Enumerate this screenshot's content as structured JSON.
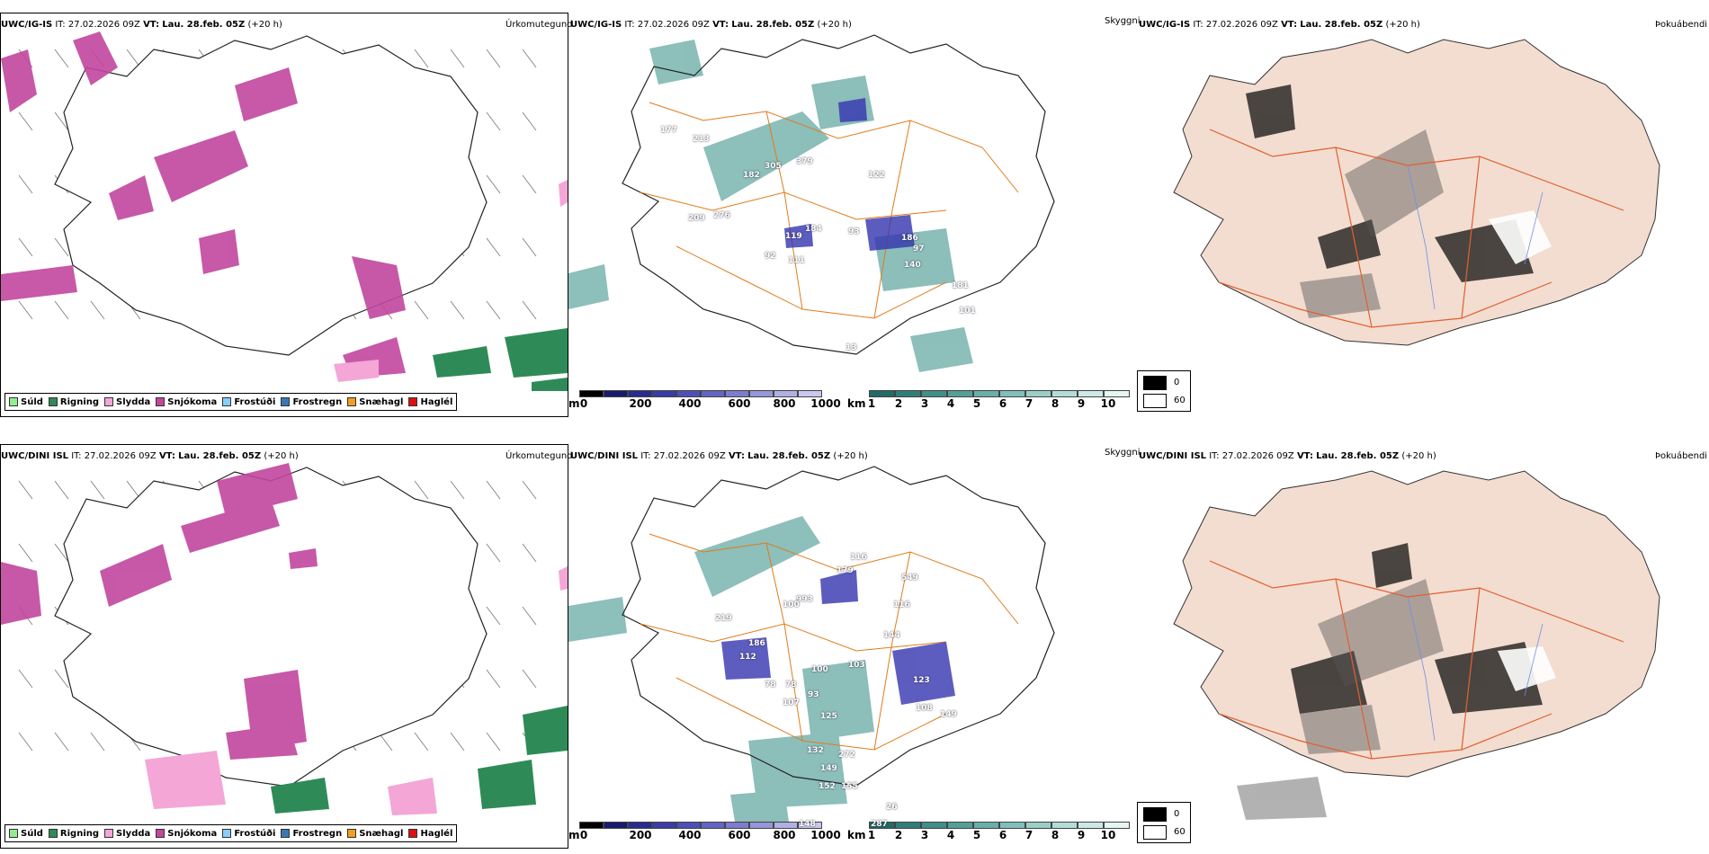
{
  "rows": [
    {
      "model": "UWC/IG-IS",
      "it_label": "IT:",
      "it_value": "27.02.2026 09Z",
      "vt_label": "VT:",
      "vt_value": "Lau. 28.feb. 05Z",
      "lead": "(+20 h)",
      "panel1_title": "Úrkomutegund",
      "panel2_title": "Skyggni",
      "panel3_title": "Þokuábendi"
    },
    {
      "model": "UWC/DINI ISL",
      "it_label": "IT:",
      "it_value": "27.02.2026 09Z",
      "vt_label": "VT:",
      "vt_value": "Lau. 28.feb. 05Z",
      "lead": "(+20 h)",
      "panel1_title": "Úrkomutegund",
      "panel2_title": "Skyggni",
      "panel3_title": "Þokuábendi"
    }
  ],
  "precip_legend": [
    {
      "label": "Súld",
      "color": "#90ee90"
    },
    {
      "label": "Rigning",
      "color": "#2e8b57"
    },
    {
      "label": "Slydda",
      "color": "#f4a6d7"
    },
    {
      "label": "Snjókoma",
      "color": "#c2469e"
    },
    {
      "label": "Frostúði",
      "color": "#87cefa"
    },
    {
      "label": "Frostregn",
      "color": "#3a78b5"
    },
    {
      "label": "Snæhagl",
      "color": "#f0a020"
    },
    {
      "label": "Haglél",
      "color": "#dd1111"
    }
  ],
  "height_scale": {
    "unit": "m",
    "ticks": [
      "0",
      "200",
      "400",
      "600",
      "800",
      "1000"
    ],
    "colors": [
      "#000000",
      "#1a1a6e",
      "#2b2b8f",
      "#3b3ba8",
      "#4e4eb8",
      "#6464c4",
      "#7c7cd0",
      "#9696da",
      "#b0b0e4",
      "#c8c8ee",
      "#e0e0f6"
    ]
  },
  "vis_scale": {
    "unit": "km",
    "ticks": [
      "1",
      "2",
      "3",
      "4",
      "5",
      "6",
      "7",
      "8",
      "9",
      "10"
    ],
    "colors": [
      "#1f6b66",
      "#2f7f79",
      "#408f89",
      "#53a099",
      "#68b0a9",
      "#80c0b9",
      "#99cfc8",
      "#b3ddd7",
      "#cde9e5",
      "#e6f4f2"
    ]
  },
  "fog_scale": {
    "items": [
      {
        "label": "0",
        "color": "#000000"
      },
      {
        "label": "60",
        "color": "#ffffff"
      }
    ]
  },
  "colors": {
    "snow": "#c2469e",
    "rain": "#2e8b57",
    "sleet": "#f4a6d7",
    "vis": "#2f8a83",
    "cloudbase": "#3434b0",
    "roads": "#e07b1a",
    "land_fog": "#f2ddd0",
    "fog_roads": "#e06030",
    "rivers": "#6f8fe8"
  },
  "cloud_base_labels_top": [
    "177",
    "213",
    "305",
    "379",
    "182",
    "122",
    "276",
    "209",
    "119",
    "184",
    "93",
    "92",
    "111",
    "186",
    "97",
    "140",
    "181",
    "101",
    "13"
  ],
  "cloud_base_labels_bottom": [
    "116",
    "179",
    "549",
    "993",
    "100",
    "116",
    "219",
    "186",
    "112",
    "144",
    "103",
    "100",
    "78",
    "78",
    "107",
    "123",
    "93",
    "108",
    "149",
    "125",
    "132",
    "272",
    "149",
    "152",
    "155",
    "26",
    "148",
    "287"
  ]
}
